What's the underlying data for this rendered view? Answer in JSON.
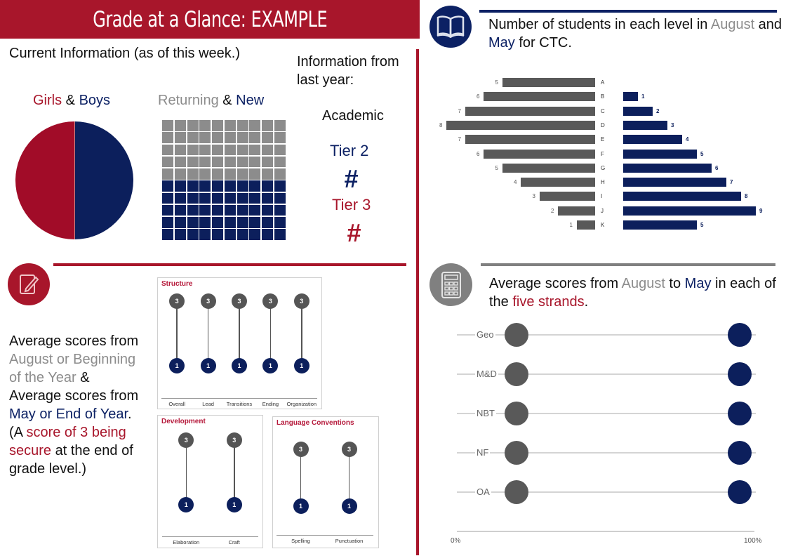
{
  "header": {
    "title": "Grade at a Glance: EXAMPLE"
  },
  "current": {
    "heading": "Current Information (as of this week.)",
    "gender_label": {
      "girls": "Girls",
      "amp": " & ",
      "boys": "Boys"
    },
    "returning_label": {
      "returning": "Returning",
      "amp": " & ",
      "new": "New"
    }
  },
  "last_year": {
    "heading_line1": "Information from",
    "heading_line2": "last year:",
    "academic": "Academic",
    "tier2_label": "Tier 2",
    "tier2_value": "#",
    "tier3_label": "Tier 3",
    "tier3_value": "#"
  },
  "levels_section": {
    "heading": {
      "p1": "Number of students in each level in ",
      "august": "August",
      "p2": " and ",
      "may": "May",
      "p3": " for CTC."
    },
    "icon": "book-icon"
  },
  "writing_section": {
    "icon": "pencil-note-icon",
    "paragraph": {
      "p1": "Average scores from ",
      "august": "August or Beginning of the Year",
      "p2": " & Average scores from ",
      "may": "May or End of Year",
      "p3": ".  (A ",
      "secure": "score of 3 being secure",
      "p4": " at the end of grade level.)"
    }
  },
  "math_section": {
    "icon": "calculator-icon",
    "heading": {
      "p1": "Average scores from ",
      "august": "August",
      "p2": " to ",
      "may": "May",
      "p3": " in each of the ",
      "strands": "five strands",
      "p4": "."
    }
  },
  "colors": {
    "brand_red": "#a8162b",
    "navy": "#0c1f5c",
    "gray": "#8c8c8c",
    "dark_gray": "#595959"
  },
  "chart_data": [
    {
      "id": "gender_pie",
      "type": "pie",
      "title": "Girls & Boys",
      "categories": [
        "Girls",
        "Boys"
      ],
      "values": [
        50,
        50
      ],
      "colors": [
        "#a10c28",
        "#0c1f5c"
      ]
    },
    {
      "id": "returning_waffle",
      "type": "waffle",
      "title": "Returning & New",
      "grid": [
        10,
        10
      ],
      "categories": [
        "Returning",
        "New"
      ],
      "values": [
        50,
        50
      ],
      "colors": [
        "#8c8c8c",
        "#0c1f5c"
      ]
    },
    {
      "id": "levels_bar",
      "type": "bar",
      "orientation": "horizontal-butterfly",
      "title": "Number of students in each level in August and May for CTC",
      "categories": [
        "A",
        "B",
        "C",
        "D",
        "E",
        "F",
        "G",
        "H",
        "I",
        "J",
        "K"
      ],
      "series": [
        {
          "name": "August",
          "color": "#595959",
          "values": [
            5,
            6,
            7,
            8,
            7,
            6,
            5,
            4,
            3,
            2,
            1
          ]
        },
        {
          "name": "May",
          "color": "#0c1f5c",
          "values": [
            0,
            1,
            2,
            3,
            4,
            5,
            6,
            7,
            8,
            9,
            5
          ]
        }
      ]
    },
    {
      "id": "writing_structure",
      "type": "dumbbell",
      "title": "Structure",
      "categories": [
        "Overall",
        "Lead",
        "Transitions",
        "Ending",
        "Organization"
      ],
      "series": [
        {
          "name": "August",
          "values": [
            3,
            3,
            3,
            3,
            3
          ]
        },
        {
          "name": "May",
          "values": [
            1,
            1,
            1,
            1,
            1
          ]
        }
      ]
    },
    {
      "id": "writing_development",
      "type": "dumbbell",
      "title": "Development",
      "categories": [
        "Elaboration",
        "Craft"
      ],
      "series": [
        {
          "name": "August",
          "values": [
            3,
            3
          ]
        },
        {
          "name": "May",
          "values": [
            1,
            1
          ]
        }
      ]
    },
    {
      "id": "writing_conventions",
      "type": "dumbbell",
      "title": "Language Conventions",
      "categories": [
        "Spelling",
        "Punctuation"
      ],
      "series": [
        {
          "name": "August",
          "values": [
            3,
            3
          ]
        },
        {
          "name": "May",
          "values": [
            1,
            1
          ]
        }
      ]
    },
    {
      "id": "math_strands",
      "type": "dumbbell",
      "orientation": "horizontal",
      "title": "Average scores from August to May in each of the five strands",
      "categories": [
        "Geo",
        "M&D",
        "NBT",
        "NF",
        "OA"
      ],
      "series": [
        {
          "name": "August",
          "color": "#595959",
          "values": [
            20,
            20,
            20,
            20,
            20
          ]
        },
        {
          "name": "May",
          "color": "#0c1f5c",
          "values": [
            95,
            95,
            95,
            95,
            95
          ]
        }
      ],
      "xlim": [
        0,
        100
      ],
      "x_ticks": [
        "0%",
        "100%"
      ]
    }
  ]
}
